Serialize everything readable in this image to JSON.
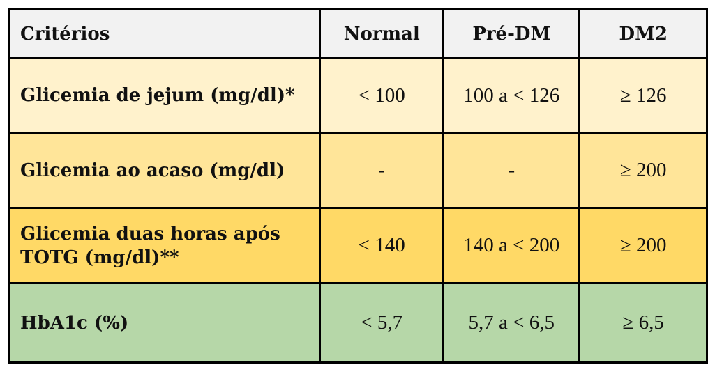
{
  "table": {
    "headers": [
      "Critérios",
      "Normal",
      "Pré-DM",
      "DM2"
    ],
    "rows": [
      {
        "label": "Glicemia de jejum (mg/dl)*",
        "normal": "< 100",
        "pre_dm": "100 a < 126",
        "dm2": "≥ 126",
        "color": "#fff2cc"
      },
      {
        "label": "Glicemia ao acaso (mg/dl)",
        "normal": "-",
        "pre_dm": "-",
        "dm2": "≥ 200",
        "color": "#ffe599"
      },
      {
        "label": "Glicemia duas horas após TOTG (mg/dl)**",
        "normal": "< 140",
        "pre_dm": "140 a < 200",
        "dm2": "≥ 200",
        "color": "#ffd966"
      },
      {
        "label": "HbA1c (%)",
        "normal": "< 5,7",
        "pre_dm": "5,7 a < 6,5",
        "dm2": "≥ 6,5",
        "color": "#b6d7a8"
      }
    ],
    "header_color": "#f2f2f2",
    "border_color": "#000000"
  }
}
